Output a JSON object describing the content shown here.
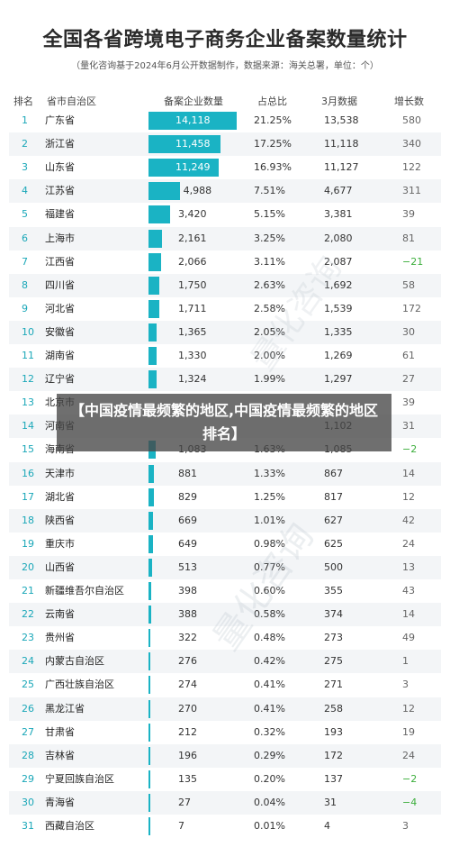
{
  "title": "全国各省跨境电子商务企业备案数量统计",
  "subtitle": "（量化咨询基于2024年6月公开数据制作，数据来源：海关总署，单位：个）",
  "headers": {
    "rank": "排名",
    "province": "省市自治区",
    "count": "备案企业数量",
    "share": "占总比",
    "march": "3月数据",
    "growth": "增长数"
  },
  "overlay_text": "【中国疫情最频繁的地区,中国疫情最频繁的地区排名】",
  "watermark": "量化咨询",
  "colors": {
    "bar": "#1ab3c4",
    "rank": "#1aa7b8",
    "negative": "#3cae3c"
  },
  "chart_data": {
    "type": "table",
    "title": "全国各省跨境电子商务企业备案数量统计",
    "columns": [
      "排名",
      "省市自治区",
      "备案企业数量",
      "占总比",
      "3月数据",
      "增长数"
    ],
    "rows": [
      {
        "rank": "1",
        "province": "广东省",
        "count": 14118,
        "count_text": "14,118",
        "share": "21.25%",
        "march": "13,538",
        "growth": "580"
      },
      {
        "rank": "2",
        "province": "浙江省",
        "count": 11458,
        "count_text": "11,458",
        "share": "17.25%",
        "march": "11,118",
        "growth": "340"
      },
      {
        "rank": "3",
        "province": "山东省",
        "count": 11249,
        "count_text": "11,249",
        "share": "16.93%",
        "march": "11,127",
        "growth": "122"
      },
      {
        "rank": "4",
        "province": "江苏省",
        "count": 4988,
        "count_text": "4,988",
        "share": "7.51%",
        "march": "4,677",
        "growth": "311"
      },
      {
        "rank": "5",
        "province": "福建省",
        "count": 3420,
        "count_text": "3,420",
        "share": "5.15%",
        "march": "3,381",
        "growth": "39"
      },
      {
        "rank": "6",
        "province": "上海市",
        "count": 2161,
        "count_text": "2,161",
        "share": "3.25%",
        "march": "2,080",
        "growth": "81"
      },
      {
        "rank": "7",
        "province": "江西省",
        "count": 2066,
        "count_text": "2,066",
        "share": "3.11%",
        "march": "2,087",
        "growth": "−21"
      },
      {
        "rank": "8",
        "province": "四川省",
        "count": 1750,
        "count_text": "1,750",
        "share": "2.63%",
        "march": "1,692",
        "growth": "58"
      },
      {
        "rank": "9",
        "province": "河北省",
        "count": 1711,
        "count_text": "1,711",
        "share": "2.58%",
        "march": "1,539",
        "growth": "172"
      },
      {
        "rank": "10",
        "province": "安徽省",
        "count": 1365,
        "count_text": "1,365",
        "share": "2.05%",
        "march": "1,335",
        "growth": "30"
      },
      {
        "rank": "11",
        "province": "湖南省",
        "count": 1330,
        "count_text": "1,330",
        "share": "2.00%",
        "march": "1,269",
        "growth": "61"
      },
      {
        "rank": "12",
        "province": "辽宁省",
        "count": 1324,
        "count_text": "1,324",
        "share": "1.99%",
        "march": "1,297",
        "growth": "27"
      },
      {
        "rank": "13",
        "province": "北京市",
        "count": null,
        "count_text": "",
        "share": "",
        "march": "",
        "growth": "39"
      },
      {
        "rank": "14",
        "province": "河南省",
        "count": null,
        "count_text": "",
        "share": "",
        "march": "1,102",
        "growth": "31"
      },
      {
        "rank": "15",
        "province": "海南省",
        "count": 1083,
        "count_text": "1,083",
        "share": "1.63%",
        "march": "1,085",
        "growth": "−2"
      },
      {
        "rank": "16",
        "province": "天津市",
        "count": 881,
        "count_text": "881",
        "share": "1.33%",
        "march": "867",
        "growth": "14"
      },
      {
        "rank": "17",
        "province": "湖北省",
        "count": 829,
        "count_text": "829",
        "share": "1.25%",
        "march": "817",
        "growth": "12"
      },
      {
        "rank": "18",
        "province": "陕西省",
        "count": 669,
        "count_text": "669",
        "share": "1.01%",
        "march": "627",
        "growth": "42"
      },
      {
        "rank": "19",
        "province": "重庆市",
        "count": 649,
        "count_text": "649",
        "share": "0.98%",
        "march": "625",
        "growth": "24"
      },
      {
        "rank": "20",
        "province": "山西省",
        "count": 513,
        "count_text": "513",
        "share": "0.77%",
        "march": "500",
        "growth": "13"
      },
      {
        "rank": "21",
        "province": "新疆维吾尔自治区",
        "count": 398,
        "count_text": "398",
        "share": "0.60%",
        "march": "355",
        "growth": "43"
      },
      {
        "rank": "22",
        "province": "云南省",
        "count": 388,
        "count_text": "388",
        "share": "0.58%",
        "march": "374",
        "growth": "14"
      },
      {
        "rank": "23",
        "province": "贵州省",
        "count": 322,
        "count_text": "322",
        "share": "0.48%",
        "march": "273",
        "growth": "49"
      },
      {
        "rank": "24",
        "province": "内蒙古自治区",
        "count": 276,
        "count_text": "276",
        "share": "0.42%",
        "march": "275",
        "growth": "1"
      },
      {
        "rank": "25",
        "province": "广西壮族自治区",
        "count": 274,
        "count_text": "274",
        "share": "0.41%",
        "march": "271",
        "growth": "3"
      },
      {
        "rank": "26",
        "province": "黑龙江省",
        "count": 270,
        "count_text": "270",
        "share": "0.41%",
        "march": "258",
        "growth": "12"
      },
      {
        "rank": "27",
        "province": "甘肃省",
        "count": 212,
        "count_text": "212",
        "share": "0.32%",
        "march": "193",
        "growth": "19"
      },
      {
        "rank": "28",
        "province": "吉林省",
        "count": 196,
        "count_text": "196",
        "share": "0.29%",
        "march": "172",
        "growth": "24"
      },
      {
        "rank": "29",
        "province": "宁夏回族自治区",
        "count": 135,
        "count_text": "135",
        "share": "0.20%",
        "march": "137",
        "growth": "−2"
      },
      {
        "rank": "30",
        "province": "青海省",
        "count": 27,
        "count_text": "27",
        "share": "0.04%",
        "march": "31",
        "growth": "−4"
      },
      {
        "rank": "31",
        "province": "西藏自治区",
        "count": 7,
        "count_text": "7",
        "share": "0.01%",
        "march": "4",
        "growth": "3"
      }
    ]
  }
}
